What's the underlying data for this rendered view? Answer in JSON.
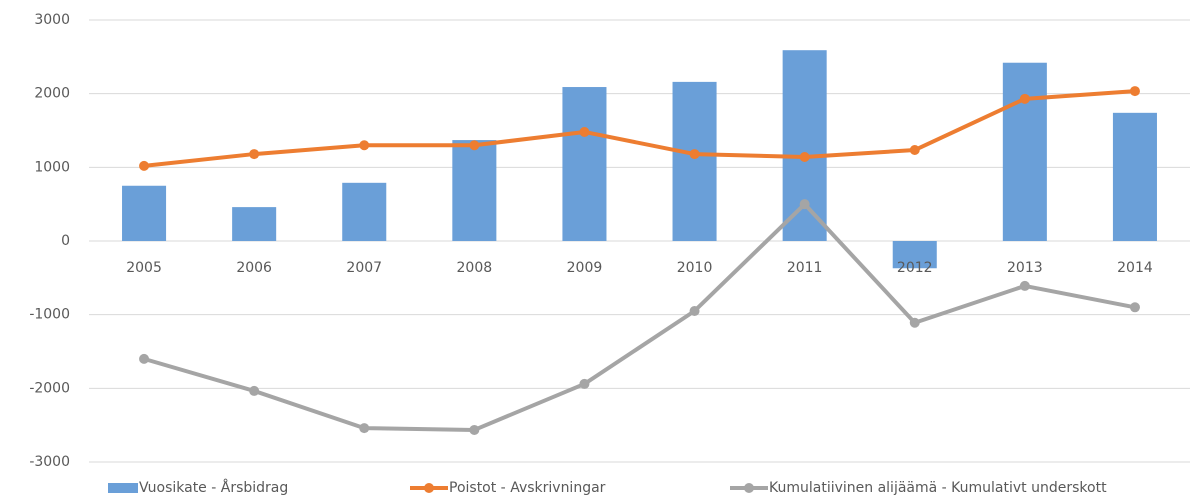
{
  "chart_data": {
    "type": "bar-line",
    "categories": [
      "2005",
      "2006",
      "2007",
      "2008",
      "2009",
      "2010",
      "2011",
      "2012",
      "2013",
      "2014"
    ],
    "series": [
      {
        "name": "Vuosikate - Årsbidrag",
        "type": "bar",
        "color": "#6a9fd8",
        "values": [
          750,
          460,
          790,
          1370,
          2090,
          2160,
          2590,
          -370,
          2420,
          1740
        ]
      },
      {
        "name": "Poistot - Avskrivningar",
        "type": "line",
        "color": "#ed7d31",
        "values": [
          1020,
          1180,
          1300,
          1300,
          1480,
          1180,
          1140,
          1235,
          1930,
          2035
        ]
      },
      {
        "name": "Kumulatiivinen alijäämä - Kumulativt underskott",
        "type": "line",
        "color": "#a5a5a5",
        "values": [
          -1600,
          -2035,
          -2540,
          -2565,
          -1940,
          -950,
          500,
          -1110,
          -610,
          -900
        ]
      }
    ],
    "ylim": [
      -3000,
      3000
    ],
    "yticks": [
      -3000,
      -2000,
      -1000,
      0,
      1000,
      2000,
      3000
    ],
    "grid": true,
    "legend": "bottom"
  }
}
